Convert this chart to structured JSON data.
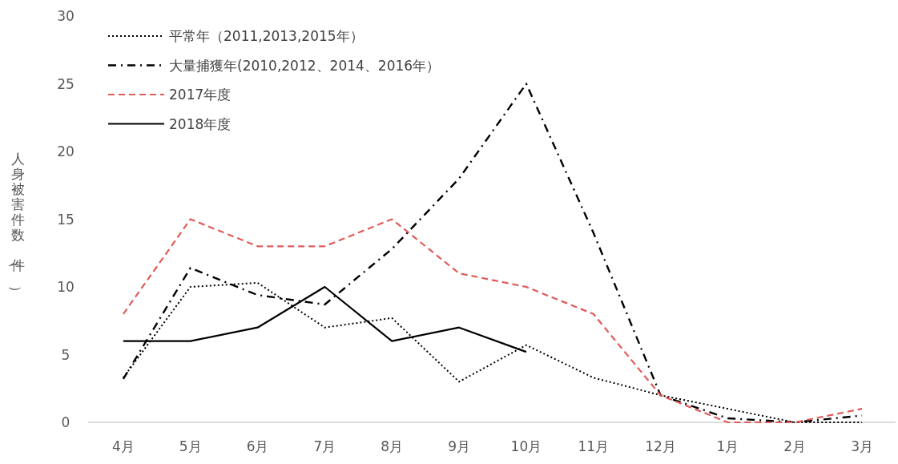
{
  "chart_data": {
    "type": "line",
    "ylabel": "人身被害件数（件）",
    "categories": [
      "4月",
      "5月",
      "6月",
      "7月",
      "8月",
      "9月",
      "10月",
      "11月",
      "12月",
      "1月",
      "2月",
      "3月"
    ],
    "ylim": [
      0,
      30
    ],
    "yticks": [
      0,
      5,
      10,
      15,
      20,
      25,
      30
    ],
    "grid": false,
    "legend": "top left",
    "marker": "none",
    "series": [
      {
        "name": "平常年（2011,2013,2015年）",
        "color": "#000000",
        "line_style": "dotted",
        "values": [
          3.3,
          10,
          10.3,
          7,
          7.7,
          3,
          5.7,
          3.3,
          2,
          1,
          0,
          0
        ]
      },
      {
        "name": "大量捕獲年(2010,2012、2014、2016年）",
        "color": "#000000",
        "line_style": "dashdot",
        "values": [
          3.2,
          11.4,
          9.4,
          8.7,
          12.8,
          18,
          25,
          14,
          2,
          0.3,
          0,
          0.5
        ]
      },
      {
        "name": "2017年度",
        "color": "#e05a5a",
        "line_style": "dashed",
        "values": [
          8,
          15,
          13,
          13,
          15,
          11,
          10,
          8,
          2,
          0,
          0,
          1
        ]
      },
      {
        "name": "2018年度",
        "color": "#000000",
        "line_style": "solid",
        "values": [
          6,
          6,
          7,
          10,
          6,
          7,
          5.2,
          null,
          null,
          null,
          null,
          null
        ]
      }
    ]
  }
}
